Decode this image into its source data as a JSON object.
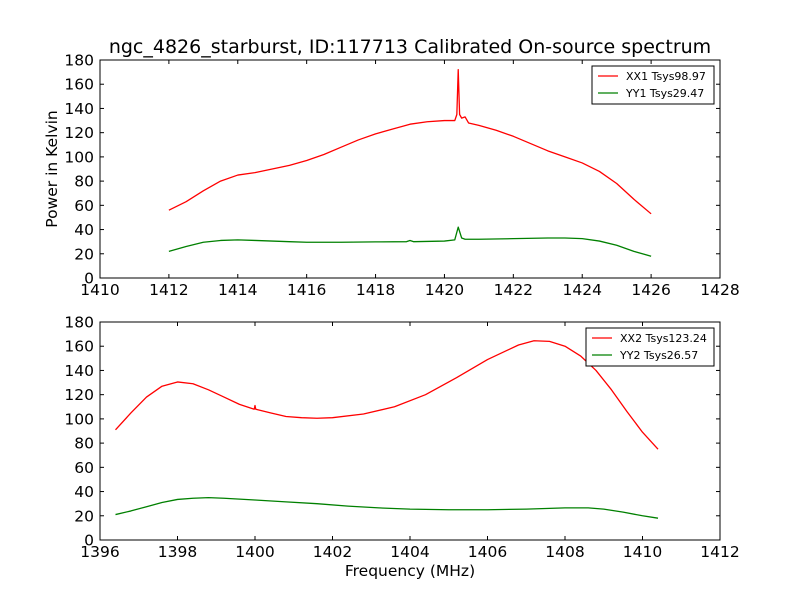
{
  "title": "ngc_4826_starburst, ID:117713 Calibrated On-source spectrum",
  "chart_data": [
    {
      "type": "line",
      "ylabel": "Power in Kelvin",
      "xlabel": "",
      "xlim": [
        1410,
        1428
      ],
      "ylim": [
        0,
        180
      ],
      "xticks": [
        1410,
        1412,
        1414,
        1416,
        1418,
        1420,
        1422,
        1424,
        1426,
        1428
      ],
      "yticks": [
        0,
        20,
        40,
        60,
        80,
        100,
        120,
        140,
        160,
        180
      ],
      "legend_position": "upper right",
      "series": [
        {
          "name": "XX1 Tsys98.97",
          "color": "#ff0000",
          "points": [
            [
              1412.0,
              56
            ],
            [
              1412.5,
              63
            ],
            [
              1413.0,
              72
            ],
            [
              1413.5,
              80
            ],
            [
              1414.0,
              85
            ],
            [
              1414.5,
              87
            ],
            [
              1415.0,
              90
            ],
            [
              1415.5,
              93
            ],
            [
              1416.0,
              97
            ],
            [
              1416.5,
              102
            ],
            [
              1417.0,
              108
            ],
            [
              1417.5,
              114
            ],
            [
              1418.0,
              119
            ],
            [
              1418.5,
              123
            ],
            [
              1419.0,
              127
            ],
            [
              1419.5,
              129
            ],
            [
              1420.0,
              130
            ],
            [
              1420.3,
              130
            ],
            [
              1420.36,
              135
            ],
            [
              1420.4,
              172
            ],
            [
              1420.44,
              135
            ],
            [
              1420.5,
              132
            ],
            [
              1420.6,
              133
            ],
            [
              1420.7,
              128
            ],
            [
              1421.0,
              126
            ],
            [
              1421.5,
              122
            ],
            [
              1422.0,
              117
            ],
            [
              1422.5,
              111
            ],
            [
              1423.0,
              105
            ],
            [
              1423.5,
              100
            ],
            [
              1424.0,
              95
            ],
            [
              1424.5,
              88
            ],
            [
              1425.0,
              78
            ],
            [
              1425.5,
              65
            ],
            [
              1426.0,
              53
            ]
          ]
        },
        {
          "name": "YY1 Tsys29.47",
          "color": "#008000",
          "points": [
            [
              1412.0,
              22
            ],
            [
              1412.5,
              26
            ],
            [
              1413.0,
              29.5
            ],
            [
              1413.5,
              31
            ],
            [
              1414.0,
              31.5
            ],
            [
              1414.5,
              31
            ],
            [
              1415.0,
              30.5
            ],
            [
              1415.5,
              30
            ],
            [
              1416.0,
              29.5
            ],
            [
              1417.0,
              29.5
            ],
            [
              1418.0,
              29.8
            ],
            [
              1418.9,
              30
            ],
            [
              1419.0,
              31
            ],
            [
              1419.1,
              30
            ],
            [
              1420.0,
              30.5
            ],
            [
              1420.3,
              31.5
            ],
            [
              1420.4,
              42
            ],
            [
              1420.5,
              33
            ],
            [
              1420.6,
              32
            ],
            [
              1421.0,
              32
            ],
            [
              1422.0,
              32.5
            ],
            [
              1423.0,
              33
            ],
            [
              1423.5,
              33
            ],
            [
              1424.0,
              32.5
            ],
            [
              1424.5,
              30.5
            ],
            [
              1425.0,
              27
            ],
            [
              1425.5,
              22
            ],
            [
              1426.0,
              18
            ]
          ]
        }
      ]
    },
    {
      "type": "line",
      "ylabel": "",
      "xlabel": "Frequency (MHz)",
      "xlim": [
        1396,
        1412
      ],
      "ylim": [
        0,
        180
      ],
      "xticks": [
        1396,
        1398,
        1400,
        1402,
        1404,
        1406,
        1408,
        1410,
        1412
      ],
      "yticks": [
        0,
        20,
        40,
        60,
        80,
        100,
        120,
        140,
        160,
        180
      ],
      "legend_position": "upper right",
      "series": [
        {
          "name": "XX2 Tsys123.24",
          "color": "#ff0000",
          "points": [
            [
              1396.4,
              91
            ],
            [
              1396.8,
              105
            ],
            [
              1397.2,
              118
            ],
            [
              1397.6,
              127
            ],
            [
              1398.0,
              130.5
            ],
            [
              1398.4,
              129
            ],
            [
              1398.8,
              124
            ],
            [
              1399.2,
              118
            ],
            [
              1399.6,
              112
            ],
            [
              1399.98,
              108
            ],
            [
              1400.0,
              111
            ],
            [
              1400.02,
              108
            ],
            [
              1400.4,
              105
            ],
            [
              1400.8,
              102
            ],
            [
              1401.2,
              101
            ],
            [
              1401.6,
              100.5
            ],
            [
              1402.0,
              101
            ],
            [
              1402.8,
              104
            ],
            [
              1403.6,
              110
            ],
            [
              1404.4,
              120
            ],
            [
              1405.2,
              134
            ],
            [
              1406.0,
              149
            ],
            [
              1406.8,
              161
            ],
            [
              1407.2,
              164.5
            ],
            [
              1407.6,
              164
            ],
            [
              1408.0,
              160
            ],
            [
              1408.4,
              152
            ],
            [
              1408.8,
              140
            ],
            [
              1409.2,
              124
            ],
            [
              1409.6,
              106
            ],
            [
              1410.0,
              89
            ],
            [
              1410.4,
              75
            ]
          ]
        },
        {
          "name": "YY2 Tsys26.57",
          "color": "#008000",
          "points": [
            [
              1396.4,
              21
            ],
            [
              1396.8,
              24
            ],
            [
              1397.2,
              27.5
            ],
            [
              1397.6,
              31
            ],
            [
              1398.0,
              33.5
            ],
            [
              1398.4,
              34.5
            ],
            [
              1398.8,
              35
            ],
            [
              1399.2,
              34.5
            ],
            [
              1400.0,
              33
            ],
            [
              1400.8,
              31.5
            ],
            [
              1401.6,
              30
            ],
            [
              1402.4,
              28
            ],
            [
              1403.2,
              26.5
            ],
            [
              1404.0,
              25.5
            ],
            [
              1405.0,
              25
            ],
            [
              1406.0,
              25
            ],
            [
              1407.0,
              25.5
            ],
            [
              1408.0,
              26.5
            ],
            [
              1408.6,
              26.5
            ],
            [
              1409.0,
              25.5
            ],
            [
              1409.5,
              23
            ],
            [
              1410.0,
              20
            ],
            [
              1410.4,
              18
            ]
          ]
        }
      ]
    }
  ]
}
